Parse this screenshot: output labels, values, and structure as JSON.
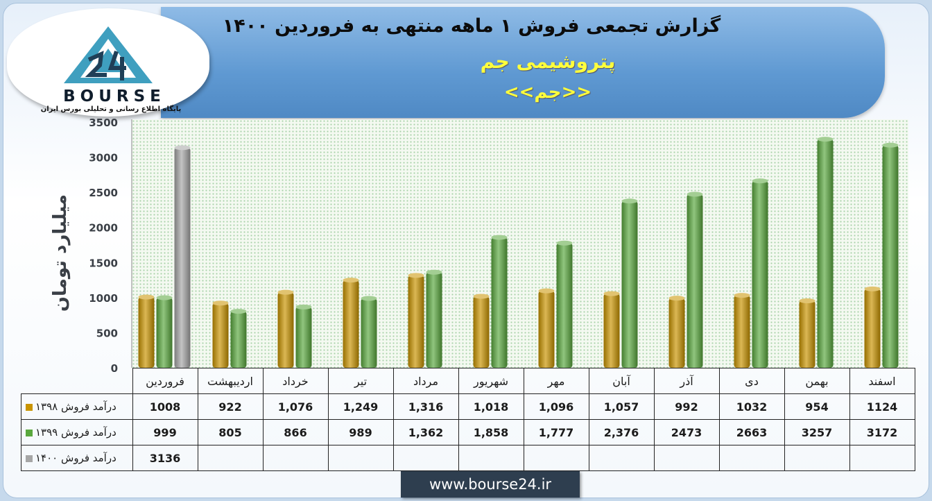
{
  "header": {
    "title": "گزارش تجمعی فروش ۱ ماهه منتهی به فروردین ۱۴۰۰",
    "subtitle": "پتروشیمی جم",
    "symbol": "<<جم>>"
  },
  "logo": {
    "wordmark": "BOURSE",
    "tagline": "پایگاه اطلاع رسانی و تحلیلی بورس ایران"
  },
  "footer": {
    "url": "www.bourse24.ir"
  },
  "colors": {
    "s1398": "#c99400",
    "s1399": "#5aa83e",
    "s1400": "#a6a6a6"
  },
  "chart_data": {
    "type": "bar",
    "ylabel": "میلیارد تومان",
    "ylim": [
      0,
      3500
    ],
    "yticks": [
      "0",
      "500",
      "1000",
      "1500",
      "2000",
      "2500",
      "3000",
      "3500"
    ],
    "grid": false,
    "legend": "table-left",
    "categories": [
      "فروردین",
      "اردیبهشت",
      "خرداد",
      "تیر",
      "مرداد",
      "شهریور",
      "مهر",
      "آبان",
      "آذر",
      "دی",
      "بهمن",
      "اسفند"
    ],
    "series": [
      {
        "name": "درآمد فروش ۱۳۹۸",
        "color": "#c99400",
        "values": [
          1008,
          922,
          1076,
          1249,
          1316,
          1018,
          1096,
          1057,
          992,
          1032,
          954,
          1124
        ],
        "labels": [
          "1008",
          "922",
          "1,076",
          "1,249",
          "1,316",
          "1,018",
          "1,096",
          "1,057",
          "992",
          "1032",
          "954",
          "1124"
        ]
      },
      {
        "name": "درآمد فروش ۱۳۹۹",
        "color": "#5aa83e",
        "values": [
          999,
          805,
          866,
          989,
          1362,
          1858,
          1777,
          2376,
          2473,
          2663,
          3257,
          3172
        ],
        "labels": [
          "999",
          "805",
          "866",
          "989",
          "1,362",
          "1,858",
          "1,777",
          "2,376",
          "2473",
          "2663",
          "3257",
          "3172"
        ]
      },
      {
        "name": "درآمد فروش ۱۴۰۰",
        "color": "#a6a6a6",
        "values": [
          3136,
          null,
          null,
          null,
          null,
          null,
          null,
          null,
          null,
          null,
          null,
          null
        ],
        "labels": [
          "3136",
          "",
          "",
          "",
          "",
          "",
          "",
          "",
          "",
          "",
          "",
          ""
        ]
      }
    ]
  }
}
